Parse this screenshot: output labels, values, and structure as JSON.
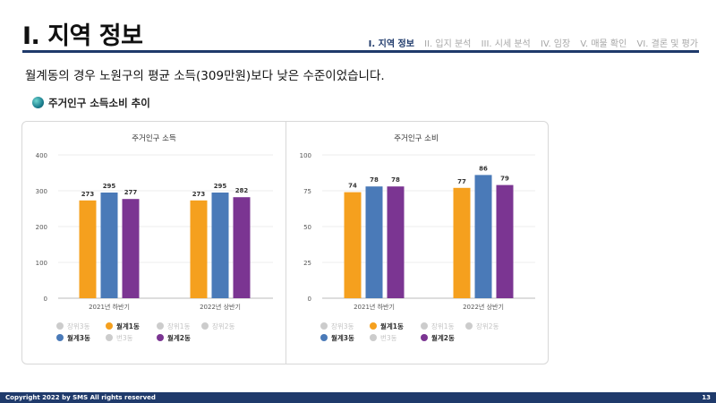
{
  "header": {
    "title": "I. 지역 정보",
    "nav": [
      "I. 지역 정보",
      "II. 입지 분석",
      "III. 시세 분석",
      "IV. 임장",
      "V. 매물 확인",
      "VI. 결론 및 평가"
    ],
    "active_index": 0
  },
  "summary": "월계동의 경우 노원구의 평균 소득(309만원)보다 낮은 수준이었습니다.",
  "section_title": "주거인구 소득소비 추이",
  "footer": {
    "copyright": "Copyright 2022 by SMS All rights reserved",
    "page_number": "13"
  },
  "colors": {
    "orange": "#f5a01e",
    "blue": "#4a7ab8",
    "purple": "#7b3592",
    "gray": "#cccccc",
    "navy": "#1f3a6b"
  },
  "legend": {
    "row1": [
      {
        "label": "장위3동",
        "active": false
      },
      {
        "label": "월계1동",
        "active": true,
        "series": 0
      },
      {
        "label": "장위1동",
        "active": false
      },
      {
        "label": "장위2동",
        "active": false
      }
    ],
    "row2": [
      {
        "label": "월계3동",
        "active": true,
        "series": 1
      },
      {
        "label": "번3동",
        "active": false
      },
      {
        "label": "월계2동",
        "active": true,
        "series": 2
      }
    ]
  },
  "chart_data": [
    {
      "type": "bar",
      "title": "주거인구 소득",
      "categories": [
        "2021년 하반기",
        "2022년 상반기"
      ],
      "series": [
        {
          "name": "월계1동",
          "values": [
            273,
            273
          ]
        },
        {
          "name": "월계3동",
          "values": [
            295,
            295
          ]
        },
        {
          "name": "월계2동",
          "values": [
            277,
            282
          ]
        }
      ],
      "ylim": [
        0,
        400
      ],
      "yticks": [
        0,
        100,
        200,
        300,
        400
      ],
      "grid": true,
      "legend": "bottom"
    },
    {
      "type": "bar",
      "title": "주거인구 소비",
      "categories": [
        "2021년 하반기",
        "2022년 상반기"
      ],
      "series": [
        {
          "name": "월계1동",
          "values": [
            74,
            77
          ]
        },
        {
          "name": "월계3동",
          "values": [
            78,
            86
          ]
        },
        {
          "name": "월계2동",
          "values": [
            78,
            79
          ]
        }
      ],
      "ylim": [
        0,
        100
      ],
      "yticks": [
        0,
        25,
        50,
        75,
        100
      ],
      "grid": true,
      "legend": "bottom"
    }
  ]
}
